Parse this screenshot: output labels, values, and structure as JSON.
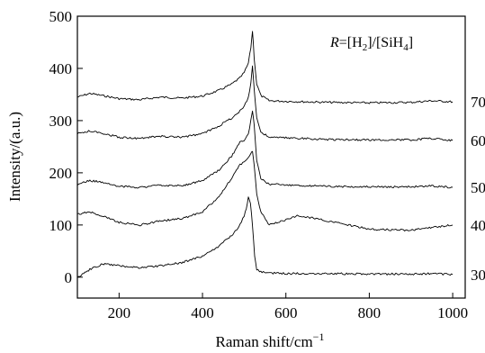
{
  "chart_data": {
    "type": "line",
    "xlabel": "Raman shift/cm",
    "xlabel_sup": "−1",
    "ylabel": "Intensity/(a.u.)",
    "xlim": [
      100,
      1030
    ],
    "ylim": [
      -40,
      500
    ],
    "xticks": [
      200,
      400,
      600,
      800,
      1000
    ],
    "yticks": [
      0,
      100,
      200,
      300,
      400,
      500
    ],
    "grid": false,
    "legend": {
      "position": "top-right",
      "italic": "R",
      "text": "=[H",
      "sub1": "2",
      "mid": "]/[SiH",
      "sub2": "4",
      "end": "]"
    },
    "series": [
      {
        "name": "70",
        "x": [
          100,
          130,
          160,
          200,
          250,
          300,
          350,
          400,
          440,
          470,
          490,
          500,
          510,
          516,
          520,
          524,
          530,
          540,
          560,
          600,
          700,
          800,
          900,
          950,
          1000
        ],
        "y": [
          345,
          352,
          348,
          342,
          340,
          345,
          343,
          347,
          358,
          370,
          382,
          392,
          410,
          440,
          472,
          420,
          370,
          348,
          338,
          337,
          335,
          334,
          335,
          338,
          336
        ]
      },
      {
        "name": "60",
        "x": [
          100,
          130,
          160,
          200,
          250,
          300,
          350,
          400,
          440,
          470,
          490,
          500,
          510,
          516,
          520,
          524,
          530,
          540,
          560,
          600,
          700,
          800,
          900,
          950,
          1000
        ],
        "y": [
          275,
          280,
          276,
          268,
          266,
          270,
          268,
          275,
          290,
          305,
          318,
          328,
          345,
          372,
          405,
          360,
          305,
          278,
          268,
          267,
          264,
          263,
          263,
          266,
          262
        ]
      },
      {
        "name": "50",
        "x": [
          100,
          130,
          160,
          200,
          250,
          300,
          350,
          400,
          440,
          470,
          490,
          500,
          510,
          516,
          520,
          524,
          530,
          540,
          560,
          600,
          700,
          800,
          900,
          950,
          1000
        ],
        "y": [
          178,
          185,
          182,
          174,
          172,
          176,
          175,
          185,
          205,
          232,
          258,
          262,
          275,
          300,
          318,
          290,
          225,
          190,
          178,
          177,
          174,
          173,
          173,
          175,
          172
        ]
      },
      {
        "name": "40",
        "x": [
          100,
          130,
          160,
          200,
          250,
          300,
          350,
          400,
          440,
          470,
          490,
          500,
          510,
          516,
          520,
          524,
          530,
          540,
          560,
          600,
          630,
          700,
          800,
          900,
          950,
          1000
        ],
        "y": [
          120,
          125,
          118,
          105,
          100,
          108,
          112,
          125,
          155,
          190,
          215,
          222,
          230,
          238,
          240,
          215,
          160,
          125,
          100,
          110,
          118,
          108,
          92,
          90,
          95,
          100
        ]
      },
      {
        "name": "30",
        "x": [
          100,
          130,
          160,
          200,
          250,
          300,
          350,
          400,
          440,
          470,
          490,
          500,
          505,
          510,
          515,
          520,
          525,
          530,
          540,
          560,
          600,
          700,
          800,
          900,
          950,
          1000
        ],
        "y": [
          0,
          15,
          25,
          22,
          18,
          22,
          28,
          40,
          60,
          80,
          100,
          118,
          130,
          155,
          140,
          100,
          40,
          15,
          10,
          8,
          7,
          7,
          6,
          6,
          7,
          5
        ]
      }
    ]
  }
}
